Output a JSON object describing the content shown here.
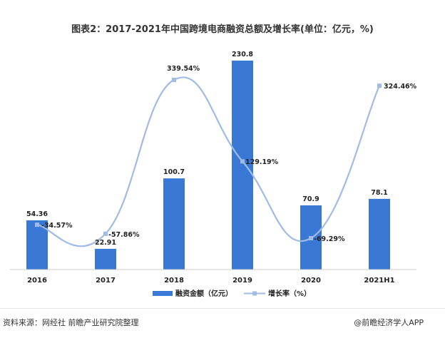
{
  "chart_data": {
    "type": "bar",
    "title": "图表2：2017-2021年中国跨境电商融资总额及增长率(单位：亿元，%)",
    "categories": [
      "2016",
      "2017",
      "2018",
      "2019",
      "2020",
      "2021H1"
    ],
    "series": [
      {
        "name": "融资金额（亿元）",
        "type": "bar",
        "values": [
          54.36,
          22.91,
          100.7,
          230.8,
          70.9,
          78.1
        ],
        "labels": [
          "54.36",
          "22.91",
          "100.7",
          "230.8",
          "70.9",
          "78.1"
        ]
      },
      {
        "name": "增长率（%）",
        "type": "line",
        "values": [
          -34.57,
          -57.86,
          339.54,
          129.19,
          -69.29,
          324.46
        ],
        "labels": [
          "-34.57%",
          "-57.86%",
          "339.54%",
          "129.19%",
          "-69.29%",
          "324.46%"
        ]
      }
    ],
    "colors": {
      "bar": "#3a78d6",
      "line": "#9fbbe6"
    },
    "legend_position": "bottom",
    "grid": false
  },
  "footer": {
    "source": "资料来源：网经社 前瞻产业研究院整理",
    "brand": "@前瞻经济学人APP"
  }
}
